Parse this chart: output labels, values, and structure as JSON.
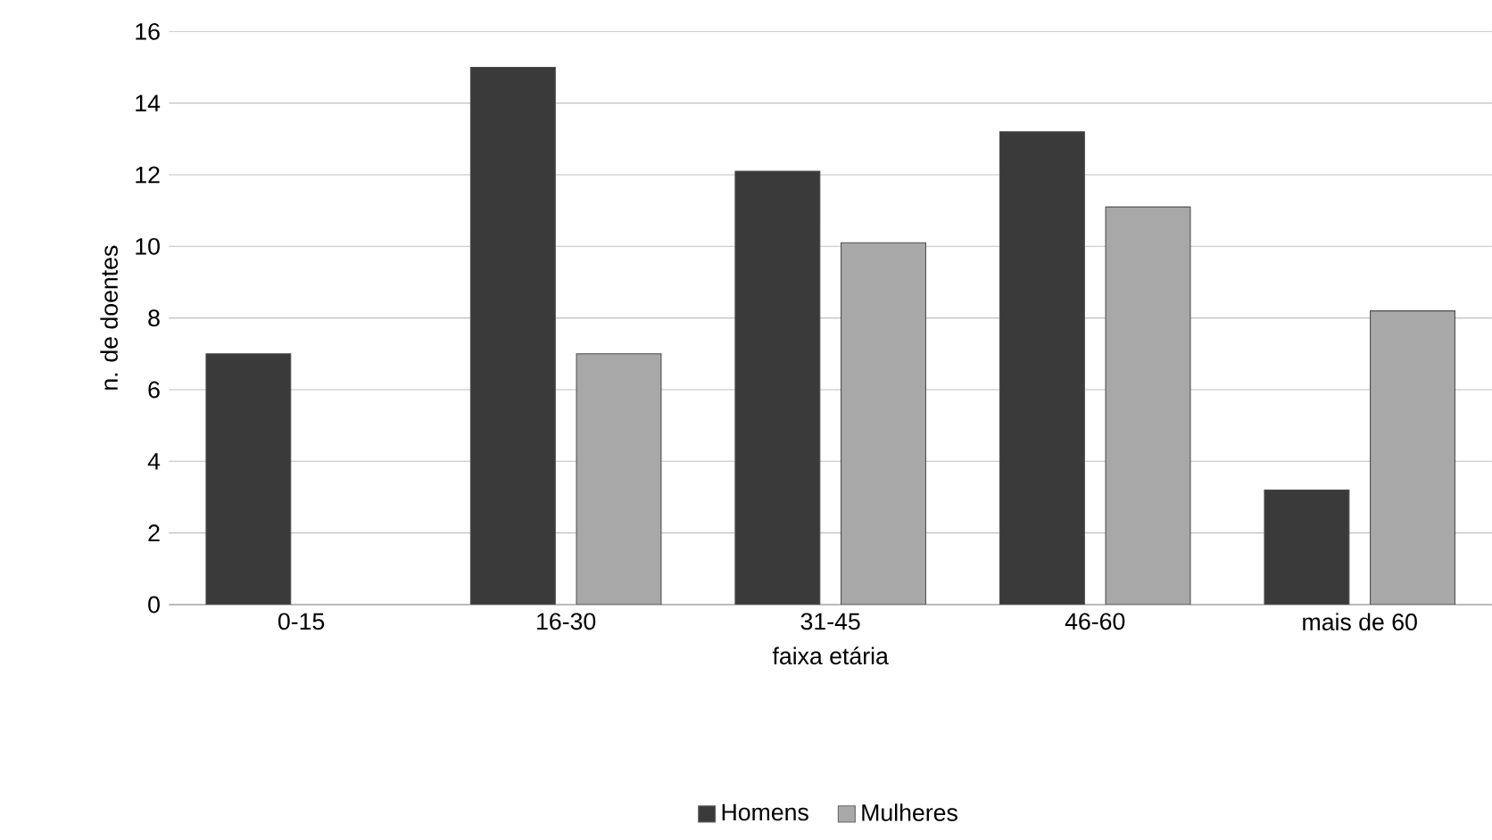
{
  "chart_data": {
    "type": "bar",
    "xlabel": "faixa etária",
    "ylabel": "n. de doentes",
    "categories": [
      "0-15",
      "16-30",
      "31-45",
      "46-60",
      "mais de 60"
    ],
    "series": [
      {
        "name": "Homens",
        "color": "#3a3a3a",
        "values": [
          7,
          15,
          12.1,
          13.2,
          3.2
        ]
      },
      {
        "name": "Mulheres",
        "color": "#a8a8a8",
        "values": [
          null,
          7,
          10.1,
          11.1,
          8.2
        ]
      }
    ],
    "ylim": [
      0,
      16
    ],
    "yticks": [
      0,
      2,
      4,
      6,
      8,
      10,
      12,
      14,
      16
    ],
    "grid": "y",
    "legend": "bottom"
  }
}
